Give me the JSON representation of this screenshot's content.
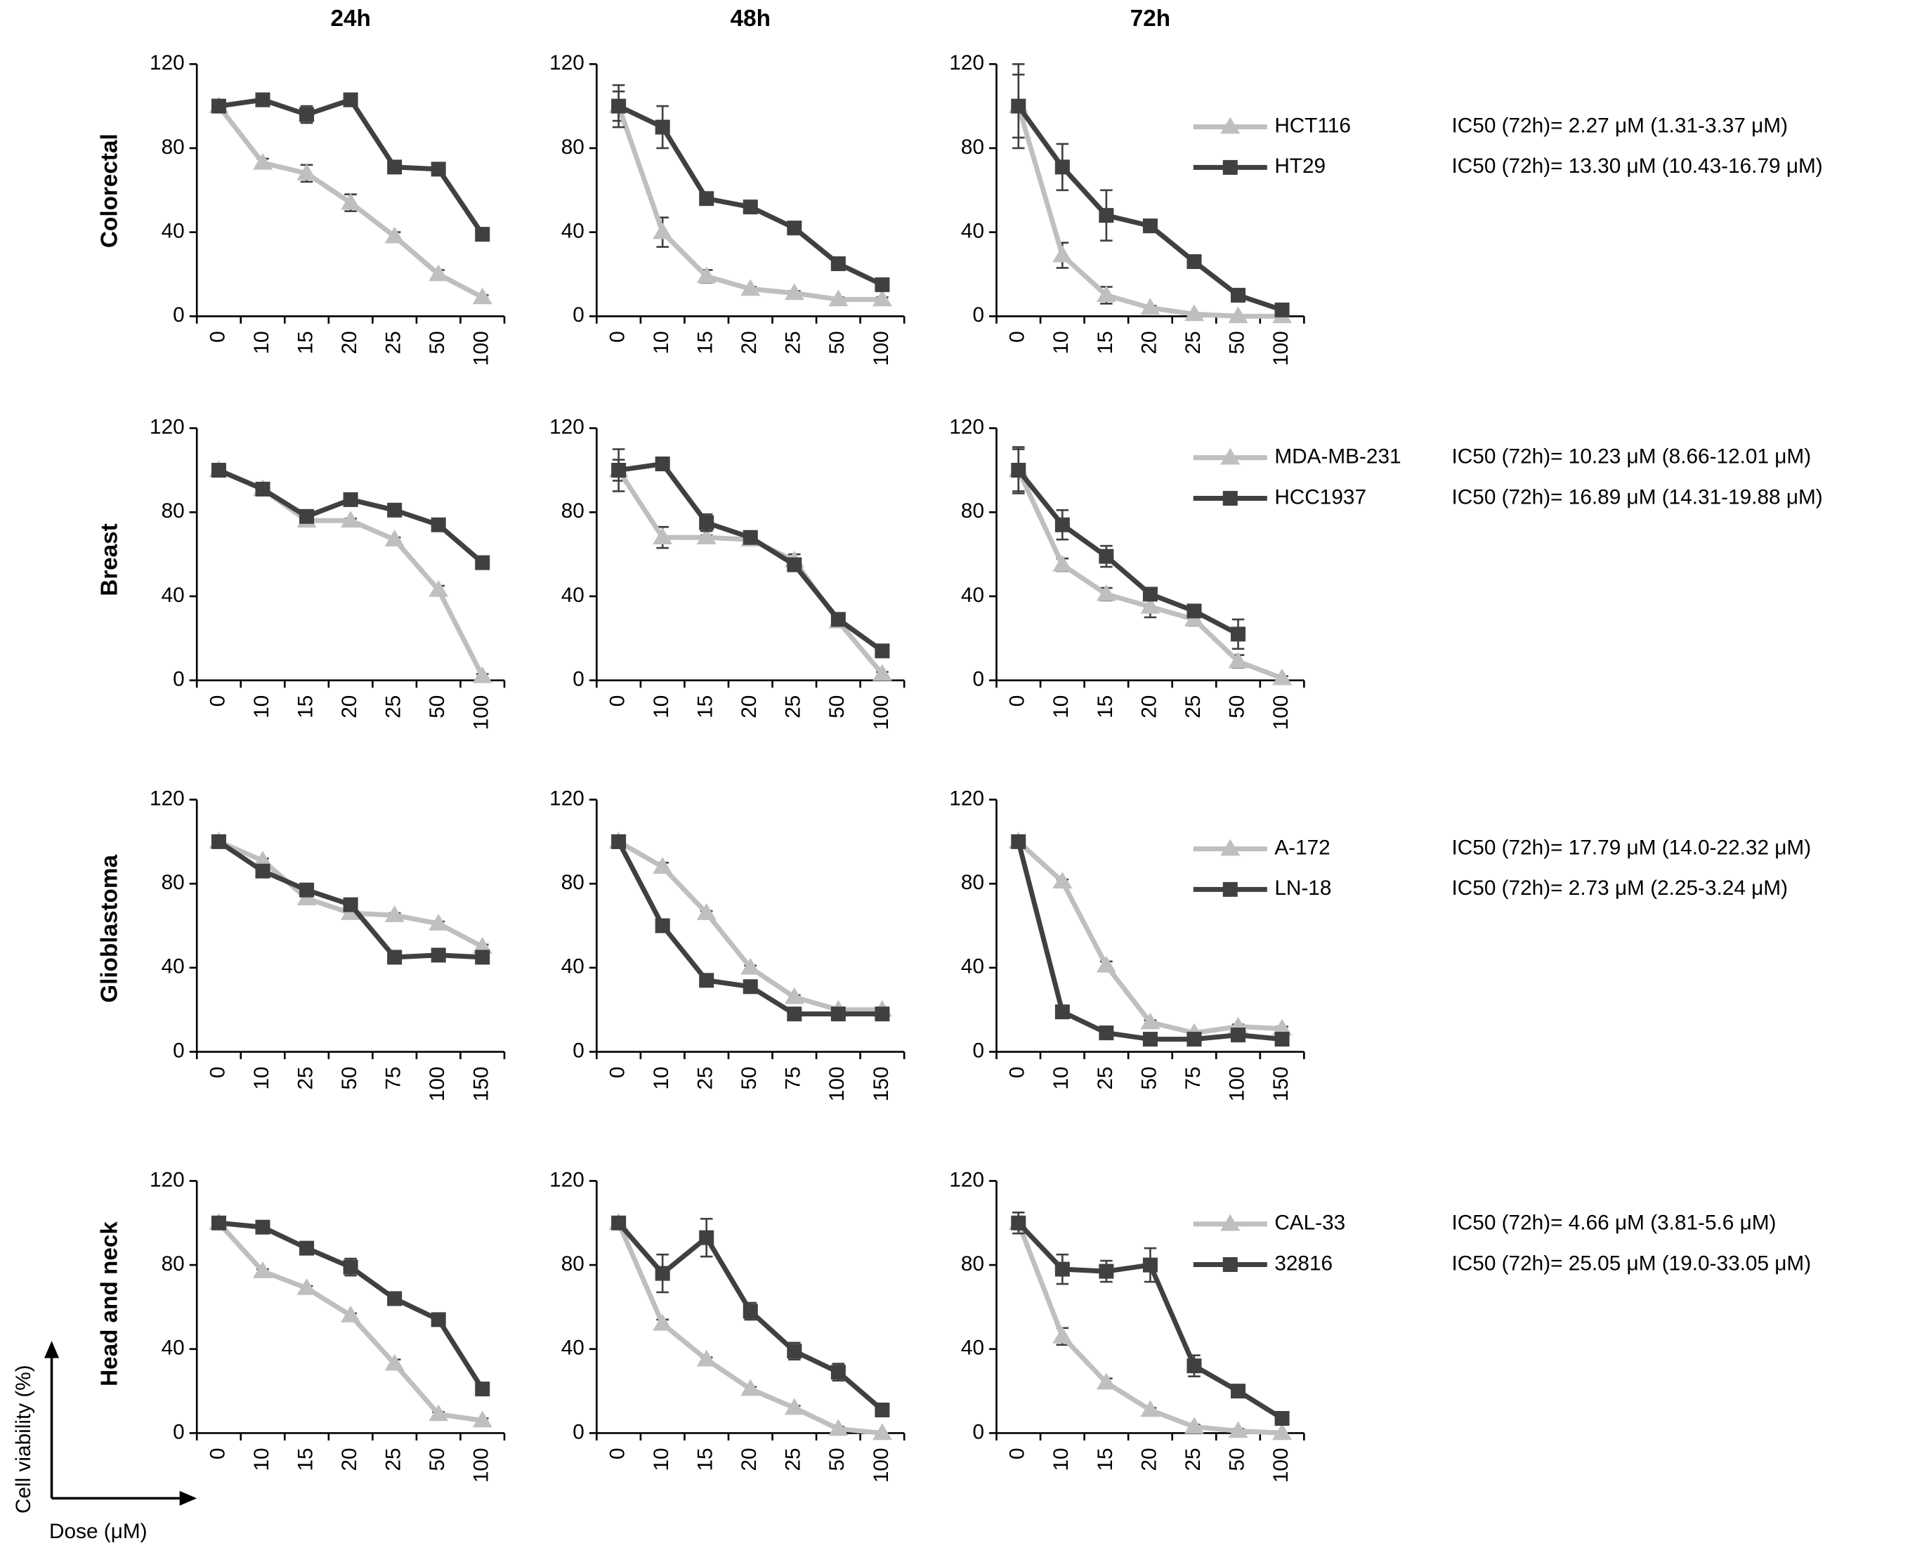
{
  "column_titles": [
    "24h",
    "48h",
    "72h"
  ],
  "row_labels": [
    "Colorectal",
    "Breast",
    "Glioblastoma",
    "Head and neck"
  ],
  "axis_key": {
    "y_label": "Cell viability (%)",
    "x_label": "Dose (μM)"
  },
  "chart_data": [
    {
      "type": "line",
      "categories": [
        "0",
        "10",
        "15",
        "20",
        "25",
        "50",
        "100"
      ],
      "ylim": [
        0,
        120
      ],
      "yticks": [
        0,
        40,
        80,
        120
      ],
      "legend": false,
      "series": [
        {
          "name": "HCT116",
          "color": "#bfbfbf",
          "marker": "triangle",
          "values": [
            100,
            73,
            68,
            54,
            38,
            20,
            9
          ],
          "errors": [
            3,
            2,
            4,
            4,
            2,
            2,
            1
          ]
        },
        {
          "name": "HT29",
          "color": "#404040",
          "marker": "square",
          "values": [
            100,
            103,
            96,
            103,
            71,
            70,
            39
          ],
          "errors": [
            3,
            2,
            4,
            1,
            1,
            1,
            1
          ]
        }
      ]
    },
    {
      "type": "line",
      "categories": [
        "0",
        "10",
        "15",
        "20",
        "25",
        "50",
        "100"
      ],
      "ylim": [
        0,
        120
      ],
      "yticks": [
        0,
        40,
        80,
        120
      ],
      "legend": false,
      "series": [
        {
          "name": "HCT116",
          "color": "#bfbfbf",
          "marker": "triangle",
          "values": [
            100,
            40,
            19,
            13,
            11,
            8,
            8
          ],
          "errors": [
            7,
            7,
            3,
            1,
            1,
            1,
            1
          ]
        },
        {
          "name": "HT29",
          "color": "#404040",
          "marker": "square",
          "values": [
            100,
            90,
            56,
            52,
            42,
            25,
            15
          ],
          "errors": [
            10,
            10,
            1,
            1,
            1,
            1,
            1
          ]
        }
      ]
    },
    {
      "type": "line",
      "categories": [
        "0",
        "10",
        "15",
        "20",
        "25",
        "50",
        "100"
      ],
      "ylim": [
        0,
        120
      ],
      "yticks": [
        0,
        40,
        80,
        120
      ],
      "legend": true,
      "annotations": [
        "IC50 (72h)= 2.27 μM (1.31-3.37 μM)",
        "IC50 (72h)= 13.30 μM (10.43-16.79 μM)"
      ],
      "series": [
        {
          "name": "HCT116",
          "color": "#bfbfbf",
          "marker": "triangle",
          "values": [
            100,
            29,
            10,
            4,
            1,
            0,
            0
          ],
          "errors": [
            20,
            6,
            4,
            1,
            0,
            0,
            0
          ]
        },
        {
          "name": "HT29",
          "color": "#404040",
          "marker": "square",
          "values": [
            100,
            71,
            48,
            43,
            26,
            10,
            3
          ],
          "errors": [
            15,
            11,
            12,
            1,
            1,
            1,
            1
          ]
        }
      ]
    },
    {
      "type": "line",
      "categories": [
        "0",
        "10",
        "15",
        "20",
        "25",
        "50",
        "100"
      ],
      "ylim": [
        0,
        120
      ],
      "yticks": [
        0,
        40,
        80,
        120
      ],
      "legend": false,
      "series": [
        {
          "name": "MDA-MB-231",
          "color": "#bfbfbf",
          "marker": "triangle",
          "values": [
            100,
            91,
            76,
            76,
            67,
            43,
            2
          ],
          "errors": [
            1,
            1,
            1,
            1,
            1,
            2,
            1
          ]
        },
        {
          "name": "HCC1937",
          "color": "#404040",
          "marker": "square",
          "values": [
            100,
            91,
            78,
            86,
            81,
            74,
            56
          ],
          "errors": [
            1,
            1,
            1,
            1,
            1,
            1,
            1
          ]
        }
      ]
    },
    {
      "type": "line",
      "categories": [
        "0",
        "10",
        "15",
        "20",
        "25",
        "50",
        "100"
      ],
      "ylim": [
        0,
        120
      ],
      "yticks": [
        0,
        40,
        80,
        120
      ],
      "legend": false,
      "series": [
        {
          "name": "MDA-MB-231",
          "color": "#bfbfbf",
          "marker": "triangle",
          "values": [
            100,
            68,
            68,
            67,
            57,
            28,
            3
          ],
          "errors": [
            5,
            5,
            1,
            1,
            3,
            1,
            1
          ]
        },
        {
          "name": "HCC1937",
          "color": "#404040",
          "marker": "square",
          "values": [
            100,
            103,
            75,
            68,
            55,
            29,
            14
          ],
          "errors": [
            10,
            1,
            4,
            1,
            1,
            1,
            1
          ]
        }
      ]
    },
    {
      "type": "line",
      "categories": [
        "0",
        "10",
        "15",
        "20",
        "25",
        "50",
        "100"
      ],
      "ylim": [
        0,
        120
      ],
      "yticks": [
        0,
        40,
        80,
        120
      ],
      "legend": true,
      "annotations": [
        "IC50 (72h)= 10.23 μM (8.66-12.01 μM)",
        "IC50 (72h)= 16.89 μM (14.31-19.88 μM)"
      ],
      "series": [
        {
          "name": "MDA-MB-231",
          "color": "#bfbfbf",
          "marker": "triangle",
          "values": [
            100,
            55,
            41,
            35,
            29,
            9,
            1
          ],
          "errors": [
            10,
            3,
            3,
            5,
            3,
            3,
            1
          ]
        },
        {
          "name": "HCC1937",
          "color": "#404040",
          "marker": "square",
          "values": [
            100,
            74,
            59,
            41,
            33,
            22,
            null
          ],
          "errors": [
            11,
            7,
            5,
            3,
            1,
            7,
            null
          ]
        }
      ]
    },
    {
      "type": "line",
      "categories": [
        "0",
        "10",
        "25",
        "50",
        "75",
        "100",
        "150"
      ],
      "ylim": [
        0,
        120
      ],
      "yticks": [
        0,
        40,
        80,
        120
      ],
      "legend": false,
      "series": [
        {
          "name": "A-172",
          "color": "#bfbfbf",
          "marker": "triangle",
          "values": [
            100,
            91,
            73,
            66,
            65,
            61,
            50
          ],
          "errors": [
            1,
            1,
            1,
            1,
            1,
            1,
            1
          ]
        },
        {
          "name": "LN-18",
          "color": "#404040",
          "marker": "square",
          "values": [
            100,
            86,
            77,
            70,
            45,
            46,
            45
          ],
          "errors": [
            1,
            1,
            1,
            1,
            1,
            1,
            1
          ]
        }
      ]
    },
    {
      "type": "line",
      "categories": [
        "0",
        "10",
        "25",
        "50",
        "75",
        "100",
        "150"
      ],
      "ylim": [
        0,
        120
      ],
      "yticks": [
        0,
        40,
        80,
        120
      ],
      "legend": false,
      "series": [
        {
          "name": "A-172",
          "color": "#bfbfbf",
          "marker": "triangle",
          "values": [
            100,
            88,
            66,
            40,
            26,
            20,
            20
          ],
          "errors": [
            1,
            2,
            1,
            1,
            1,
            1,
            1
          ]
        },
        {
          "name": "LN-18",
          "color": "#404040",
          "marker": "square",
          "values": [
            100,
            60,
            34,
            31,
            18,
            18,
            18
          ],
          "errors": [
            3,
            1,
            1,
            1,
            1,
            1,
            1
          ]
        }
      ]
    },
    {
      "type": "line",
      "categories": [
        "0",
        "10",
        "25",
        "50",
        "75",
        "100",
        "150"
      ],
      "ylim": [
        0,
        120
      ],
      "yticks": [
        0,
        40,
        80,
        120
      ],
      "legend": true,
      "annotations": [
        "IC50 (72h)= 17.79 μM (14.0-22.32 μM)",
        "IC50 (72h)= 2.73 μM (2.25-3.24 μM)"
      ],
      "series": [
        {
          "name": "A-172",
          "color": "#bfbfbf",
          "marker": "triangle",
          "values": [
            100,
            81,
            41,
            14,
            9,
            12,
            11
          ],
          "errors": [
            1,
            1,
            2,
            1,
            1,
            1,
            1
          ]
        },
        {
          "name": "LN-18",
          "color": "#404040",
          "marker": "square",
          "values": [
            100,
            19,
            9,
            6,
            6,
            8,
            6
          ],
          "errors": [
            1,
            1,
            1,
            1,
            1,
            1,
            1
          ]
        }
      ]
    },
    {
      "type": "line",
      "categories": [
        "0",
        "10",
        "15",
        "20",
        "25",
        "50",
        "100"
      ],
      "ylim": [
        0,
        120
      ],
      "yticks": [
        0,
        40,
        80,
        120
      ],
      "legend": false,
      "series": [
        {
          "name": "CAL-33",
          "color": "#bfbfbf",
          "marker": "triangle",
          "values": [
            100,
            77,
            69,
            56,
            33,
            9,
            6
          ],
          "errors": [
            1,
            1,
            1,
            1,
            2,
            1,
            1
          ]
        },
        {
          "name": "32816",
          "color": "#404040",
          "marker": "square",
          "values": [
            100,
            98,
            88,
            79,
            64,
            54,
            21
          ],
          "errors": [
            2,
            1,
            1,
            4,
            1,
            1,
            2
          ]
        }
      ]
    },
    {
      "type": "line",
      "categories": [
        "0",
        "10",
        "15",
        "20",
        "25",
        "50",
        "100"
      ],
      "ylim": [
        0,
        120
      ],
      "yticks": [
        0,
        40,
        80,
        120
      ],
      "legend": false,
      "series": [
        {
          "name": "CAL-33",
          "color": "#bfbfbf",
          "marker": "triangle",
          "values": [
            100,
            52,
            35,
            21,
            12,
            2,
            0
          ],
          "errors": [
            1,
            2,
            1,
            1,
            1,
            1,
            0
          ]
        },
        {
          "name": "32816",
          "color": "#404040",
          "marker": "square",
          "values": [
            100,
            76,
            93,
            58,
            39,
            29,
            11
          ],
          "errors": [
            2,
            9,
            9,
            4,
            4,
            4,
            1
          ]
        }
      ]
    },
    {
      "type": "line",
      "categories": [
        "0",
        "10",
        "15",
        "20",
        "25",
        "50",
        "100"
      ],
      "ylim": [
        0,
        120
      ],
      "yticks": [
        0,
        40,
        80,
        120
      ],
      "legend": true,
      "annotations": [
        "IC50 (72h)= 4.66 μM (3.81-5.6 μM)",
        "IC50 (72h)= 25.05 μM (19.0-33.05 μM)"
      ],
      "series": [
        {
          "name": "CAL-33",
          "color": "#bfbfbf",
          "marker": "triangle",
          "values": [
            100,
            46,
            24,
            11,
            3,
            1,
            0
          ],
          "errors": [
            2,
            4,
            2,
            1,
            1,
            1,
            0
          ]
        },
        {
          "name": "32816",
          "color": "#404040",
          "marker": "square",
          "values": [
            100,
            78,
            77,
            80,
            32,
            20,
            7
          ],
          "errors": [
            5,
            7,
            5,
            8,
            5,
            1,
            1
          ]
        }
      ]
    }
  ]
}
